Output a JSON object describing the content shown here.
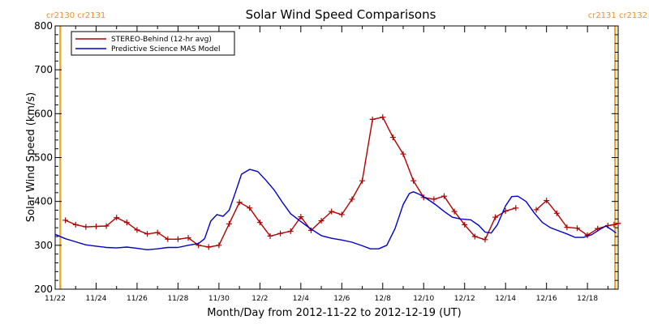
{
  "chart_data": {
    "type": "line",
    "title": "Solar Wind Speed Comparisons",
    "xlabel": "Month/Day from 2012-11-22 to 2012-12-19 (UT)",
    "ylabel": "Solar Wind Speed (km/s)",
    "xlim": [
      0,
      27.5
    ],
    "ylim": [
      200,
      800
    ],
    "yticks": [
      200,
      300,
      400,
      500,
      600,
      700,
      800
    ],
    "xticks": [
      {
        "label": "11/22",
        "x": 0
      },
      {
        "label": "11/24",
        "x": 2
      },
      {
        "label": "11/26",
        "x": 4
      },
      {
        "label": "11/28",
        "x": 6
      },
      {
        "label": "11/30",
        "x": 8
      },
      {
        "label": "12/2",
        "x": 10
      },
      {
        "label": "12/4",
        "x": 12
      },
      {
        "label": "12/6",
        "x": 14
      },
      {
        "label": "12/8",
        "x": 16
      },
      {
        "label": "12/10",
        "x": 18
      },
      {
        "label": "12/12",
        "x": 20
      },
      {
        "label": "12/14",
        "x": 22
      },
      {
        "label": "12/16",
        "x": 24
      },
      {
        "label": "12/18",
        "x": 26
      }
    ],
    "carrington_markers": [
      {
        "label": "cr2130 cr2131",
        "x": 0.25,
        "label_side": "left"
      },
      {
        "label": "cr2131 cr2132",
        "x": 27.35,
        "label_side": "right"
      }
    ],
    "grid": false,
    "legend_position": "top-left",
    "series": [
      {
        "name": "STEREO-Behind (12-hr avg)",
        "color": "#b00000",
        "marker": "+",
        "segments": [
          [
            [
              0.5,
              357
            ],
            [
              1.0,
              347
            ],
            [
              1.5,
              342
            ],
            [
              2.0,
              343
            ],
            [
              2.5,
              344
            ],
            [
              3.0,
              363
            ],
            [
              3.5,
              352
            ],
            [
              4.0,
              335
            ],
            [
              4.5,
              326
            ],
            [
              5.0,
              329
            ],
            [
              5.5,
              314
            ],
            [
              6.0,
              314
            ],
            [
              6.5,
              317
            ],
            [
              7.0,
              300
            ],
            [
              7.5,
              296
            ],
            [
              8.0,
              300
            ],
            [
              8.5,
              349
            ],
            [
              9.0,
              398
            ],
            [
              9.5,
              385
            ],
            [
              10.0,
              352
            ],
            [
              10.5,
              321
            ],
            [
              11.0,
              327
            ],
            [
              11.5,
              332
            ],
            [
              12.0,
              365
            ],
            [
              12.5,
              334
            ],
            [
              13.0,
              356
            ],
            [
              13.5,
              377
            ],
            [
              14.0,
              370
            ],
            [
              14.5,
              405
            ],
            [
              15.0,
              447
            ],
            [
              15.5,
              587
            ],
            [
              16.0,
              592
            ],
            [
              16.5,
              546
            ],
            [
              17.0,
              508
            ],
            [
              17.5,
              447
            ],
            [
              18.0,
              409
            ],
            [
              18.5,
              405
            ],
            [
              19.0,
              412
            ],
            [
              19.5,
              377
            ],
            [
              20.0,
              347
            ],
            [
              20.5,
              320
            ],
            [
              21.0,
              313
            ],
            [
              21.5,
              364
            ],
            [
              22.0,
              378
            ],
            [
              22.5,
              385
            ]
          ],
          [
            [
              23.5,
              381
            ],
            [
              24.0,
              402
            ],
            [
              24.5,
              373
            ],
            [
              25.0,
              341
            ],
            [
              25.5,
              339
            ],
            [
              26.0,
              323
            ],
            [
              26.5,
              338
            ],
            [
              27.0,
              345
            ],
            [
              27.3,
              347
            ],
            [
              27.5,
              350
            ]
          ]
        ]
      },
      {
        "name": "Predictive Science MAS Model",
        "color": "#0000c8",
        "marker": "none",
        "segments": [
          [
            [
              0.0,
              325
            ],
            [
              0.5,
              315
            ],
            [
              1.0,
              308
            ],
            [
              1.5,
              301
            ],
            [
              2.0,
              298
            ],
            [
              2.5,
              295
            ],
            [
              3.0,
              294
            ],
            [
              3.5,
              296
            ],
            [
              4.0,
              293
            ],
            [
              4.5,
              290
            ],
            [
              5.0,
              292
            ],
            [
              5.5,
              295
            ],
            [
              6.0,
              295
            ],
            [
              6.5,
              300
            ],
            [
              7.0,
              304
            ],
            [
              7.3,
              315
            ],
            [
              7.6,
              355
            ],
            [
              7.9,
              370
            ],
            [
              8.2,
              366
            ],
            [
              8.5,
              380
            ],
            [
              8.8,
              420
            ],
            [
              9.1,
              462
            ],
            [
              9.5,
              473
            ],
            [
              9.9,
              468
            ],
            [
              10.3,
              448
            ],
            [
              10.7,
              426
            ],
            [
              11.1,
              398
            ],
            [
              11.5,
              372
            ],
            [
              12.0,
              354
            ],
            [
              12.5,
              337
            ],
            [
              13.0,
              322
            ],
            [
              13.5,
              316
            ],
            [
              14.0,
              312
            ],
            [
              14.5,
              307
            ],
            [
              15.0,
              299
            ],
            [
              15.4,
              292
            ],
            [
              15.8,
              292
            ],
            [
              16.2,
              300
            ],
            [
              16.6,
              338
            ],
            [
              17.0,
              393
            ],
            [
              17.3,
              418
            ],
            [
              17.5,
              422
            ],
            [
              17.8,
              416
            ],
            [
              18.2,
              405
            ],
            [
              18.6,
              392
            ],
            [
              19.0,
              377
            ],
            [
              19.4,
              364
            ],
            [
              19.8,
              360
            ],
            [
              20.3,
              358
            ],
            [
              20.7,
              345
            ],
            [
              21.0,
              330
            ],
            [
              21.3,
              328
            ],
            [
              21.6,
              347
            ],
            [
              22.0,
              390
            ],
            [
              22.3,
              411
            ],
            [
              22.6,
              412
            ],
            [
              23.0,
              400
            ],
            [
              23.4,
              374
            ],
            [
              23.8,
              352
            ],
            [
              24.2,
              340
            ],
            [
              24.6,
              333
            ],
            [
              25.0,
              326
            ],
            [
              25.4,
              318
            ],
            [
              25.8,
              318
            ],
            [
              26.2,
              324
            ],
            [
              26.6,
              336
            ],
            [
              26.9,
              344
            ],
            [
              27.2,
              335
            ],
            [
              27.4,
              328
            ]
          ]
        ]
      }
    ]
  }
}
